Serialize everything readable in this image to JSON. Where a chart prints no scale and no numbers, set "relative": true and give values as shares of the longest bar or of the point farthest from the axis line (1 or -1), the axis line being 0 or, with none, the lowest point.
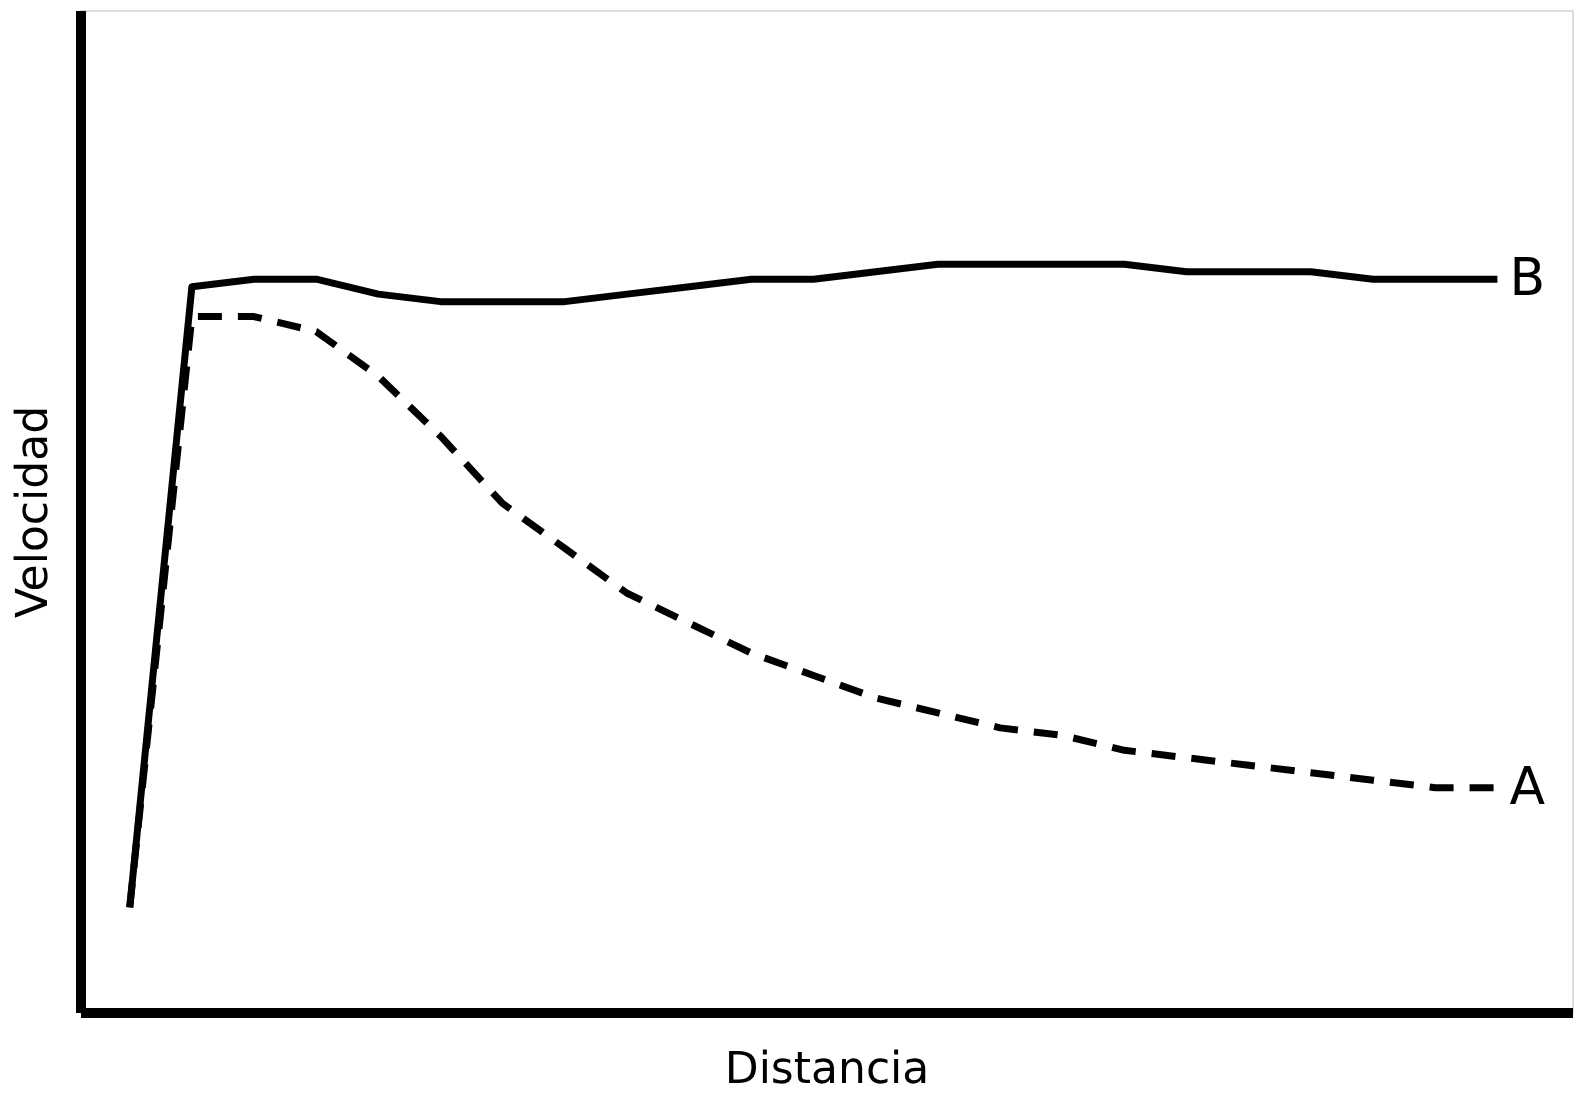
{
  "chart_data": {
    "type": "line",
    "relative": true,
    "xlabel": "Distancia",
    "ylabel": "Velocidad",
    "grid": false,
    "legend": false,
    "marker": "none",
    "categories": [
      null,
      null,
      null,
      null,
      null,
      null,
      null,
      null,
      null,
      null,
      null,
      null,
      null,
      null,
      null,
      null,
      null,
      null,
      null,
      null,
      null,
      null,
      null
    ],
    "series": [
      {
        "name": "B",
        "color": "#000000",
        "line_style": "solid",
        "values": [
          0.14,
          0.97,
          0.98,
          0.98,
          0.96,
          0.95,
          0.95,
          0.95,
          0.96,
          0.97,
          0.98,
          0.98,
          0.99,
          1.0,
          1.0,
          1.0,
          1.0,
          0.99,
          0.99,
          0.99,
          0.98,
          0.98,
          0.98
        ]
      },
      {
        "name": "A",
        "color": "#000000",
        "line_style": "dashed",
        "values": [
          0.14,
          0.93,
          0.93,
          0.91,
          0.85,
          0.77,
          0.68,
          0.62,
          0.56,
          0.52,
          0.48,
          0.45,
          0.42,
          0.4,
          0.38,
          0.37,
          0.35,
          0.34,
          0.33,
          0.32,
          0.31,
          0.3,
          0.3
        ]
      }
    ]
  }
}
